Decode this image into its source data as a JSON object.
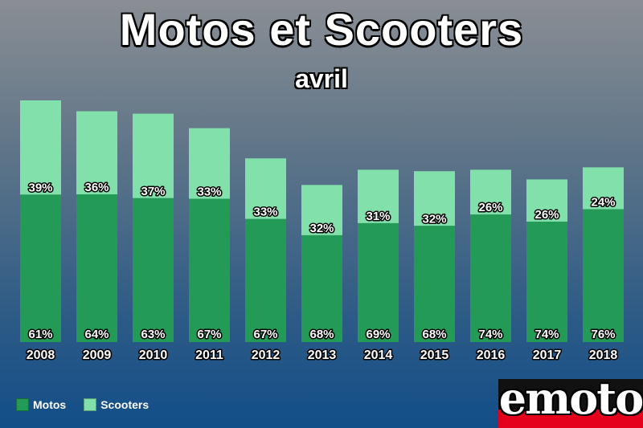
{
  "title": "Motos et Scooters",
  "subtitle": "avril",
  "logo": "emoto",
  "colors": {
    "motos": "#239b56",
    "scooters": "#82e0aa"
  },
  "chart_data": {
    "type": "bar",
    "stacked": true,
    "title": "Motos et Scooters",
    "subtitle": "avril",
    "categories": [
      "2008",
      "2009",
      "2010",
      "2011",
      "2012",
      "2013",
      "2014",
      "2015",
      "2016",
      "2017",
      "2018"
    ],
    "totals": [
      100,
      95.5,
      94.5,
      88.5,
      76,
      65,
      71.3,
      70.7,
      71.3,
      67.3,
      72.3
    ],
    "series": [
      {
        "name": "Motos",
        "percent_labels": [
          "61%",
          "64%",
          "63%",
          "67%",
          "67%",
          "68%",
          "69%",
          "68%",
          "74%",
          "74%",
          "76%"
        ]
      },
      {
        "name": "Scooters",
        "percent_labels": [
          "39%",
          "36%",
          "37%",
          "33%",
          "33%",
          "32%",
          "31%",
          "32%",
          "26%",
          "26%",
          "24%"
        ]
      }
    ],
    "legend": "bottom-left",
    "grid": false
  },
  "legend": {
    "items": [
      "Motos",
      "Scooters"
    ]
  }
}
